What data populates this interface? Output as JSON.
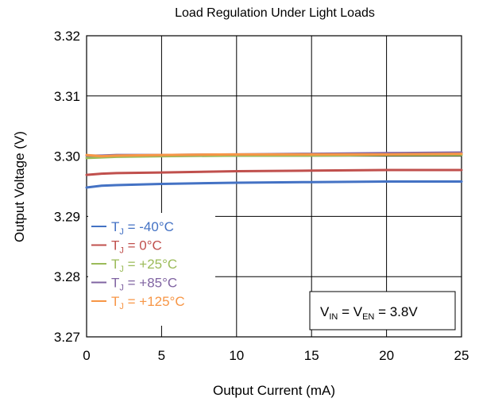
{
  "chart_data": {
    "type": "line",
    "title": "Load Regulation Under Light Loads",
    "xlabel": "Output Current (mA)",
    "ylabel": "Output Voltage (V)",
    "xlim": [
      0,
      25
    ],
    "ylim": [
      3.27,
      3.32
    ],
    "xticks": [
      "0",
      "5",
      "10",
      "15",
      "20",
      "25"
    ],
    "yticks": [
      "3.27",
      "3.28",
      "3.29",
      "3.30",
      "3.31",
      "3.32"
    ],
    "grid": true,
    "legend_position": "bottom-left",
    "x": [
      0,
      1,
      2,
      5,
      10,
      15,
      20,
      25
    ],
    "series": [
      {
        "label_base": "T",
        "label_sub": "J",
        "label_rest": " = -40°C",
        "color": "#4472C4",
        "values": [
          3.2948,
          3.2951,
          3.2952,
          3.2954,
          3.2956,
          3.2957,
          3.2958,
          3.2958
        ]
      },
      {
        "label_base": "T",
        "label_sub": "J",
        "label_rest": " = 0°C",
        "color": "#C0504D",
        "values": [
          3.2969,
          3.2971,
          3.2972,
          3.2973,
          3.2975,
          3.2976,
          3.2977,
          3.2977
        ]
      },
      {
        "label_base": "T",
        "label_sub": "J",
        "label_rest": " = +25°C",
        "color": "#9BBB59",
        "values": [
          3.2997,
          3.2998,
          3.2999,
          3.3,
          3.3001,
          3.3001,
          3.3002,
          3.3002
        ]
      },
      {
        "label_base": "T",
        "label_sub": "J",
        "label_rest": " = +85°C",
        "color": "#8064A2",
        "values": [
          3.3001,
          3.3001,
          3.3002,
          3.3002,
          3.3003,
          3.3004,
          3.3005,
          3.3006
        ]
      },
      {
        "label_base": "T",
        "label_sub": "J",
        "label_rest": " = +125°C",
        "color": "#F79646",
        "values": [
          3.3002,
          3.3,
          3.3001,
          3.3002,
          3.3003,
          3.3003,
          3.3003,
          3.3004
        ]
      }
    ],
    "annotation": {
      "parts": [
        {
          "text": "V",
          "sub": false
        },
        {
          "text": "IN",
          "sub": true
        },
        {
          "text": " = V",
          "sub": false
        },
        {
          "text": "EN",
          "sub": true
        },
        {
          "text": " = 3.8V",
          "sub": false
        }
      ]
    }
  }
}
